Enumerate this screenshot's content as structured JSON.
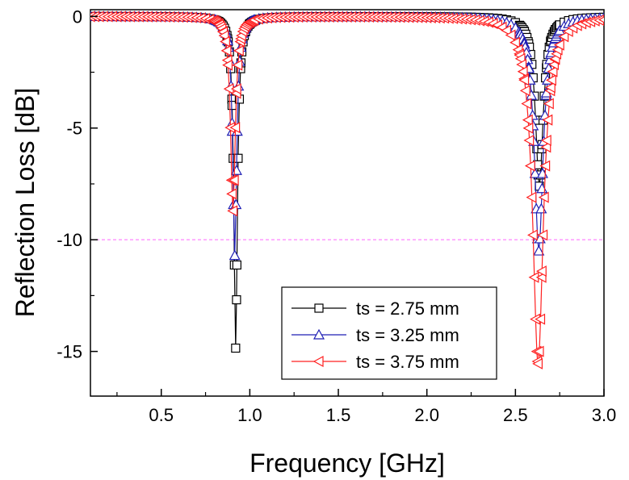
{
  "chart_data": {
    "type": "line",
    "title": "",
    "xlabel": "Frequency [GHz]",
    "ylabel": "Reflection Loss [dB]",
    "xlim": [
      0.1,
      3.0
    ],
    "ylim": [
      -17,
      0.3
    ],
    "x_ticks": [
      0.5,
      1.0,
      1.5,
      2.0,
      2.5,
      3.0
    ],
    "x_tick_labels": [
      "0.5",
      "1.0",
      "1.5",
      "2.0",
      "2.5",
      "3.0"
    ],
    "y_ticks": [
      0,
      -5,
      -10,
      -15
    ],
    "y_tick_labels": [
      "0",
      "-5",
      "-10",
      "-15"
    ],
    "grid": false,
    "legend_position": "lower-right",
    "reference_line": {
      "y": -10,
      "color": "#ff66ff",
      "style": "dashed"
    },
    "series": [
      {
        "name": "ts = 2.75 mm",
        "color": "#000000",
        "marker": "square",
        "resonances": [
          {
            "f0": 0.92,
            "depth": 14.85,
            "q": 38
          },
          {
            "f0": 2.635,
            "depth": 7.6,
            "q": 50
          }
        ]
      },
      {
        "name": "ts = 3.25 mm",
        "color": "#1f1fb4",
        "marker": "triangle-up",
        "resonances": [
          {
            "f0": 0.915,
            "depth": 10.7,
            "q": 34
          },
          {
            "f0": 2.632,
            "depth": 10.5,
            "q": 44
          }
        ]
      },
      {
        "name": "ts = 3.75 mm",
        "color": "#ff2020",
        "marker": "triangle-left",
        "resonances": [
          {
            "f0": 0.905,
            "depth": 8.7,
            "q": 28
          },
          {
            "f0": 2.628,
            "depth": 15.55,
            "q": 36
          }
        ]
      }
    ]
  }
}
